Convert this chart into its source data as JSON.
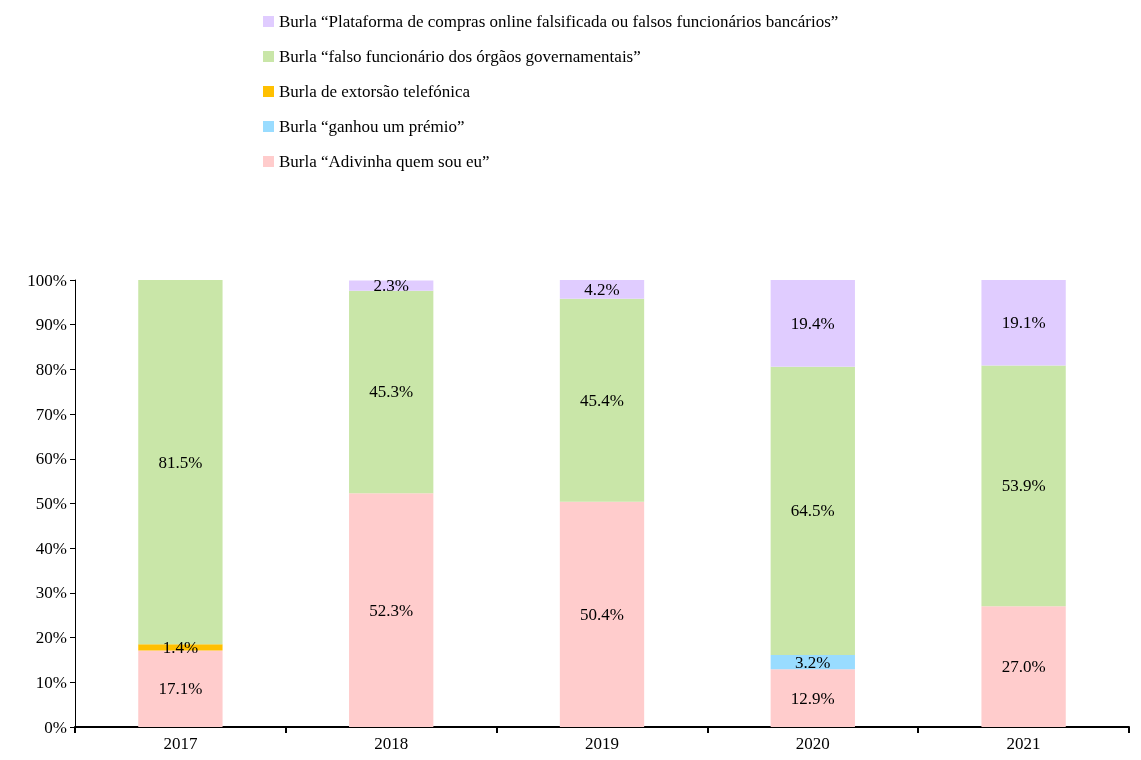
{
  "chart_data": {
    "type": "bar",
    "stacked": true,
    "categories": [
      "2017",
      "2018",
      "2019",
      "2020",
      "2021"
    ],
    "series": [
      {
        "name": "Burla “Adivinha quem sou eu”",
        "color": "#ffcccc",
        "values": [
          17.1,
          52.3,
          50.4,
          12.9,
          27.0
        ],
        "value_labels": [
          "17.1%",
          "52.3%",
          "50.4%",
          "12.9%",
          "27.0%"
        ]
      },
      {
        "name": "Burla “ganhou um prémio”",
        "color": "#99dcff",
        "values": [
          null,
          null,
          null,
          3.2,
          null
        ],
        "value_labels": [
          null,
          null,
          null,
          "3.2%",
          null
        ]
      },
      {
        "name": "Burla de extorsão telefónica",
        "color": "#ffc000",
        "values": [
          1.4,
          null,
          null,
          null,
          null
        ],
        "value_labels": [
          "1.4%",
          null,
          null,
          null,
          null
        ]
      },
      {
        "name": "Burla “falso funcionário dos órgãos governamentais”",
        "color": "#c9e6a8",
        "values": [
          81.5,
          45.3,
          45.4,
          64.5,
          53.9
        ],
        "value_labels": [
          "81.5%",
          "45.3%",
          "45.4%",
          "64.5%",
          "53.9%"
        ]
      },
      {
        "name": "Burla “Plataforma de compras online falsificada ou falsos funcionários bancários”",
        "color": "#e0ccff",
        "values": [
          null,
          2.3,
          4.2,
          19.4,
          19.1
        ],
        "value_labels": [
          null,
          "2.3%",
          "4.2%",
          "19.4%",
          "19.1%"
        ]
      }
    ],
    "ylim": [
      0,
      100
    ],
    "yticks": [
      {
        "value": 0,
        "label": "0%"
      },
      {
        "value": 10,
        "label": "10%"
      },
      {
        "value": 20,
        "label": "20%"
      },
      {
        "value": 30,
        "label": "30%"
      },
      {
        "value": 40,
        "label": "40%"
      },
      {
        "value": 50,
        "label": "50%"
      },
      {
        "value": 60,
        "label": "60%"
      },
      {
        "value": 70,
        "label": "70%"
      },
      {
        "value": 80,
        "label": "80%"
      },
      {
        "value": 90,
        "label": "90%"
      },
      {
        "value": 100,
        "label": "100%"
      }
    ],
    "grid": false,
    "legend": "top"
  }
}
